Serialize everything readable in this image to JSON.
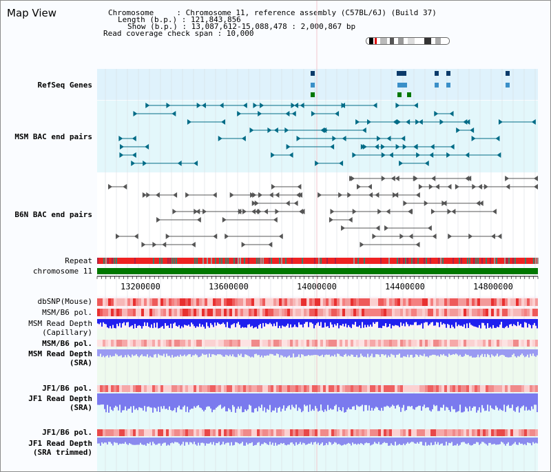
{
  "title": "Map View",
  "info": {
    "line1": "Chromosome     : Chromosome 11, reference assembly (C57BL/6J) (Build 37)",
    "line2": "Length (b.p.) : 121,843,856",
    "line3": "Show (b.p.) : 13,087,612-15,088,478 : 2,000,867 bp",
    "line4": "Read coverage check span : 10,000"
  },
  "labels": {
    "refseq": "RefSeq Genes",
    "msm_bac": "MSM BAC end pairs",
    "b6n_bac": "B6N BAC end pairs",
    "repeat": "Repeat",
    "chromosome": "chromosome 11",
    "dbsnp": "dbSNP(Mouse)",
    "msm_b6_pol1": "MSM/B6 pol.",
    "msm_read_cap": "MSM Read Depth\n(Capillary)",
    "msm_b6_pol2": "MSM/B6 pol.",
    "msm_read_sra": "MSM Read Depth\n(SRA)",
    "jf1_b6_pol1": "JF1/B6 pol.",
    "jf1_read_sra": "JF1 Read Depth\n(SRA)",
    "jf1_b6_pol2": "JF1/B6 pol.",
    "jf1_read_trim": "JF1 Read Depth\n(SRA trimmed)"
  },
  "ticks": [
    "13200000",
    "13600000",
    "14000000",
    "14400000",
    "14800000"
  ],
  "colors": {
    "refseq": "#0b2fb5",
    "msm": "#006b86",
    "b6n": "#555555",
    "orange": "#d98c00",
    "navy": "#10108a",
    "chromosome": "#007700",
    "snp_red": "#ee3333",
    "depth_blue": "#2020ee",
    "depth_light": "#7a7aee"
  },
  "range": {
    "start": 13087612,
    "end": 15088478,
    "span": 2000867
  }
}
